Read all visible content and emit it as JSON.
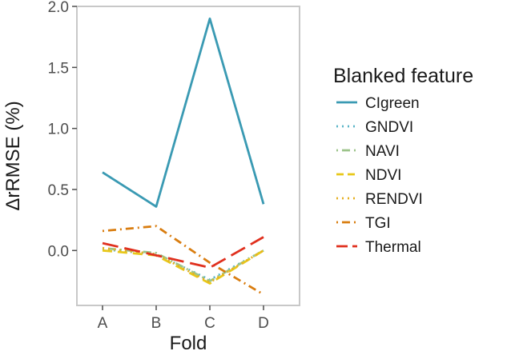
{
  "chart_data": {
    "type": "line",
    "title": "",
    "xlabel": "Fold",
    "ylabel": "ΔrRMSE (%)",
    "categories": [
      "A",
      "B",
      "C",
      "D"
    ],
    "ylim": [
      -0.45,
      2.0
    ],
    "yticks": [
      0.0,
      0.5,
      1.0,
      1.5,
      2.0
    ],
    "ytick_labels": [
      "0.0",
      "0.5",
      "1.0",
      "1.5",
      "2.0"
    ],
    "grid": false,
    "legend": {
      "title": "Blanked feature",
      "placement": "right"
    },
    "series": [
      {
        "name": "CIgreen",
        "color": "#3a9ab3",
        "dash": "solid",
        "values": [
          0.64,
          0.36,
          1.9,
          0.38
        ]
      },
      {
        "name": "GNDVI",
        "color": "#5bb5c8",
        "dash": "dotted",
        "values": [
          0.01,
          -0.03,
          -0.24,
          0.0
        ]
      },
      {
        "name": "NAVI",
        "color": "#9cc48a",
        "dash": "dashdot",
        "values": [
          0.02,
          -0.02,
          -0.25,
          0.0
        ]
      },
      {
        "name": "NDVI",
        "color": "#e8c81a",
        "dash": "dashed",
        "values": [
          0.0,
          -0.04,
          -0.27,
          0.0
        ]
      },
      {
        "name": "RENDVI",
        "color": "#e6b022",
        "dash": "dotted",
        "values": [
          0.02,
          -0.03,
          -0.26,
          0.0
        ]
      },
      {
        "name": "TGI",
        "color": "#d97d10",
        "dash": "dashdot",
        "values": [
          0.16,
          0.2,
          -0.1,
          -0.36
        ]
      },
      {
        "name": "Thermal",
        "color": "#e0301e",
        "dash": "longdash",
        "values": [
          0.06,
          -0.04,
          -0.14,
          0.11
        ]
      }
    ]
  }
}
